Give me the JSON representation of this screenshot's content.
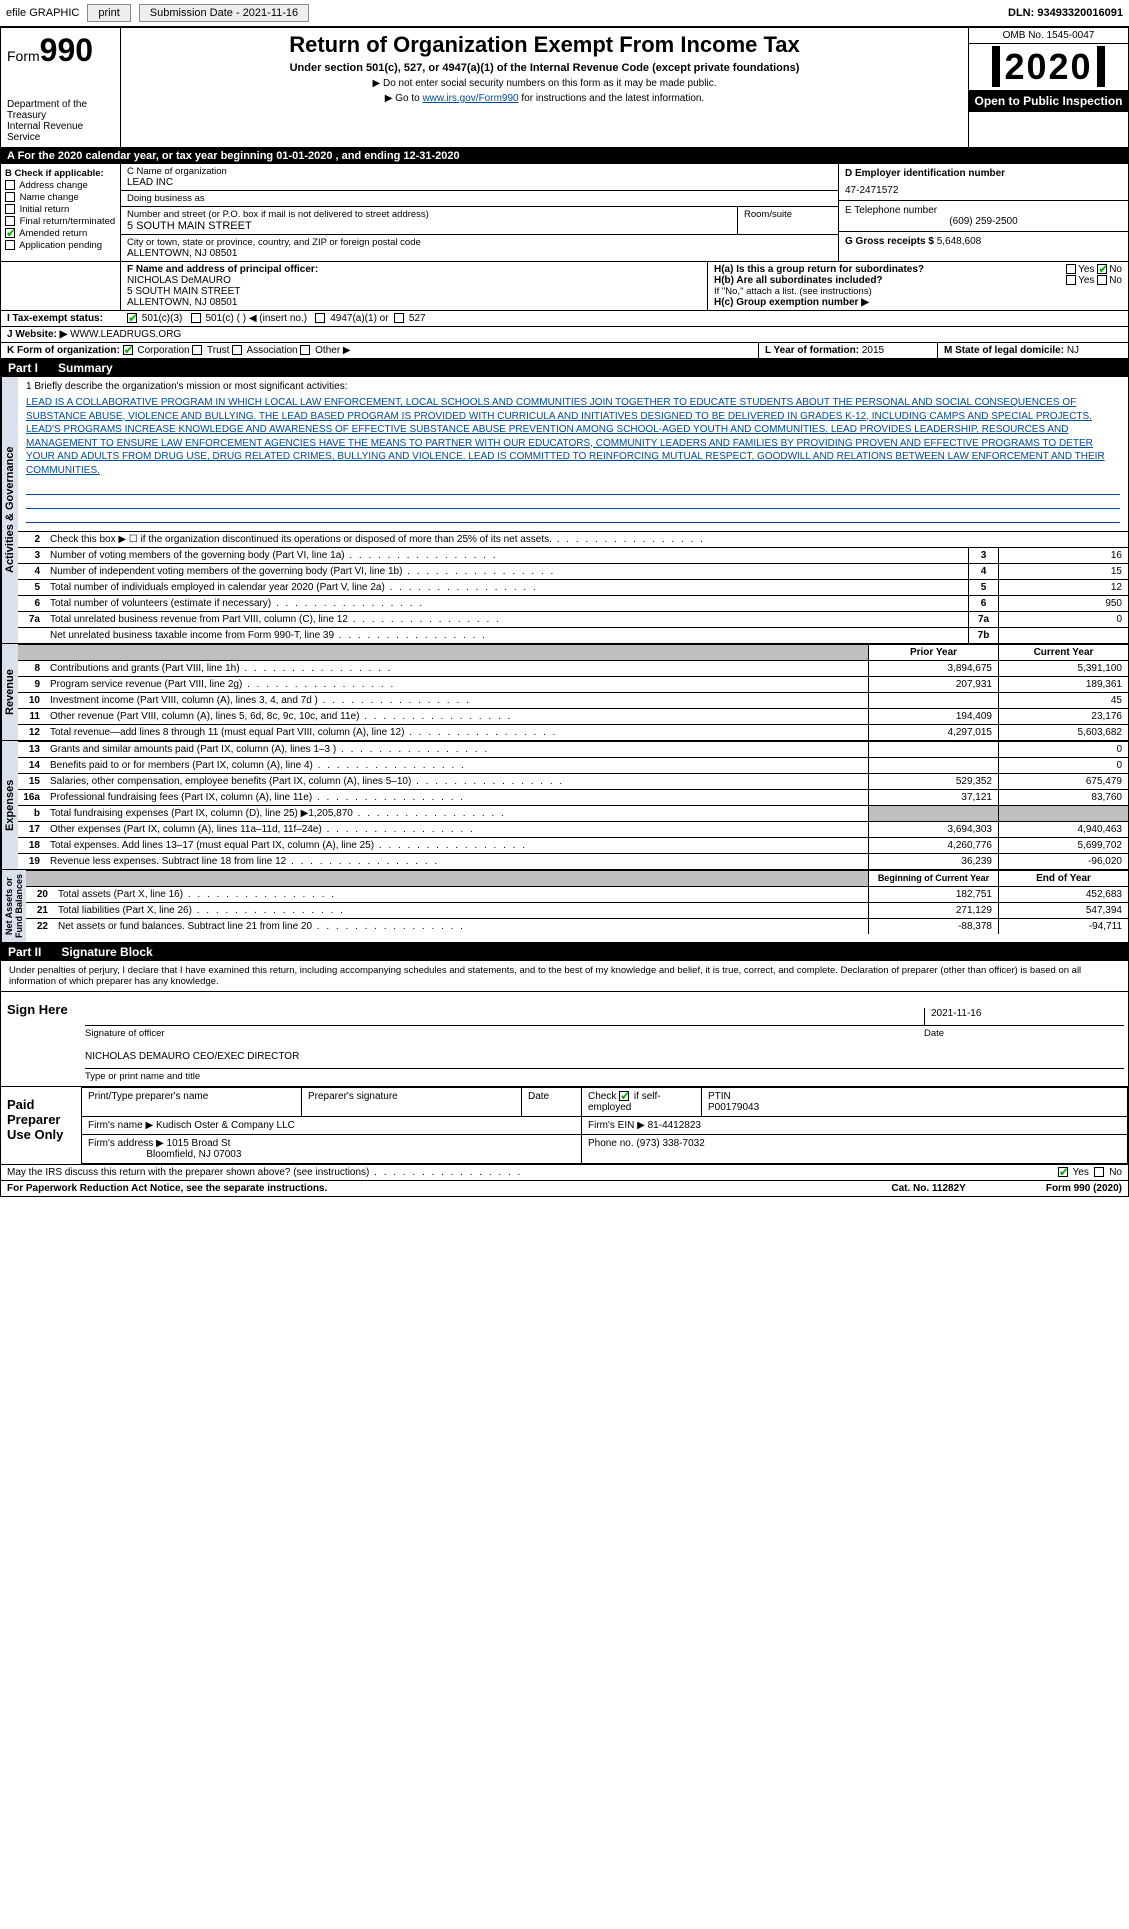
{
  "topbar": {
    "efile": "efile GRAPHIC",
    "print": "print",
    "subdate_label": "Submission Date - 2021-11-16",
    "dln": "DLN: 93493320016091"
  },
  "header": {
    "form_prefix": "Form",
    "form_num": "990",
    "dept": "Department of the Treasury\nInternal Revenue Service",
    "title": "Return of Organization Exempt From Income Tax",
    "sub": "Under section 501(c), 527, or 4947(a)(1) of the Internal Revenue Code (except private foundations)",
    "note1": "▶ Do not enter social security numbers on this form as it may be made public.",
    "note2_pre": "▶ Go to ",
    "note2_link": "www.irs.gov/Form990",
    "note2_post": " for instructions and the latest information.",
    "omb": "OMB No. 1545-0047",
    "year": "2020",
    "open": "Open to Public Inspection"
  },
  "period": "A   For the 2020 calendar year, or tax year beginning 01-01-2020    , and ending 12-31-2020",
  "box_b": {
    "label": "B Check if applicable:",
    "items": [
      "Address change",
      "Name change",
      "Initial return",
      "Final return/terminated",
      "Amended return",
      "Application pending"
    ],
    "checked": [
      false,
      false,
      false,
      false,
      true,
      false
    ]
  },
  "box_c": {
    "name_label": "C Name of organization",
    "name": "LEAD INC",
    "dba_label": "Doing business as",
    "dba": "",
    "street_label": "Number and street (or P.O. box if mail is not delivered to street address)",
    "street": "5 SOUTH MAIN STREET",
    "room_label": "Room/suite",
    "city_label": "City or town, state or province, country, and ZIP or foreign postal code",
    "city": "ALLENTOWN, NJ  08501"
  },
  "box_d": {
    "label": "D Employer identification number",
    "val": "47-2471572"
  },
  "box_e": {
    "label": "E Telephone number",
    "val": "(609) 259-2500"
  },
  "box_g": {
    "label": "G Gross receipts $ ",
    "val": "5,648,608"
  },
  "box_f": {
    "label": "F  Name and address of principal officer:",
    "name": "NICHOLAS DeMAURO",
    "street": "5 SOUTH MAIN STREET",
    "city": "ALLENTOWN, NJ  08501"
  },
  "box_h": {
    "a": "H(a)  Is this a group return for subordinates?",
    "b": "H(b)  Are all subordinates included?",
    "note": "If \"No,\" attach a list. (see instructions)",
    "c": "H(c)  Group exemption number ▶"
  },
  "tax_status": {
    "label": "I   Tax-exempt status:",
    "s501c3": "501(c)(3)",
    "s501c": "501(c) (  ) ◀ (insert no.)",
    "s4947": "4947(a)(1) or",
    "s527": "527"
  },
  "website": {
    "label": "J   Website: ▶",
    "val": "WWW.LEADRUGS.ORG"
  },
  "box_k": {
    "label": "K Form of organization:",
    "corp": "Corporation",
    "trust": "Trust",
    "assoc": "Association",
    "other": "Other ▶"
  },
  "box_l": {
    "label": "L Year of formation: ",
    "val": "2015"
  },
  "box_m": {
    "label": "M State of legal domicile: ",
    "val": "NJ"
  },
  "part1": {
    "title": "Part I",
    "sub": "Summary"
  },
  "mission": {
    "q": "1  Briefly describe the organization's mission or most significant activities:",
    "text": "LEAD IS A COLLABORATIVE PROGRAM IN WHICH LOCAL LAW ENFORCEMENT, LOCAL SCHOOLS AND COMMUNITIES JOIN TOGETHER TO EDUCATE STUDENTS ABOUT THE PERSONAL AND SOCIAL CONSEQUENCES OF SUBSTANCE ABUSE, VIOLENCE AND BULLYING. THE LEAD BASED PROGRAM IS PROVIDED WITH CURRICULA AND INITIATIVES DESIGNED TO BE DELIVERED IN GRADES K-12, INCLUDING CAMPS AND SPECIAL PROJECTS. LEAD'S PROGRAMS INCREASE KNOWLEDGE AND AWARENESS OF EFFECTIVE SUBSTANCE ABUSE PREVENTION AMONG SCHOOL-AGED YOUTH AND COMMUNITIES. LEAD PROVIDES LEADERSHIP, RESOURCES AND MANAGEMENT TO ENSURE LAW ENFORCEMENT AGENCIES HAVE THE MEANS TO PARTNER WITH OUR EDUCATORS, COMMUNITY LEADERS AND FAMILIES BY PROVIDING PROVEN AND EFFECTIVE PROGRAMS TO DETER YOUR AND ADULTS FROM DRUG USE, DRUG RELATED CRIMES, BULLYING AND VIOLENCE. LEAD IS COMMITTED TO REINFORCING MUTUAL RESPECT, GOODWILL AND RELATIONS BETWEEN LAW ENFORCEMENT AND THEIR COMMUNITIES."
  },
  "gov_lines": [
    {
      "n": "2",
      "d": "Check this box ▶ ☐ if the organization discontinued its operations or disposed of more than 25% of its net assets."
    },
    {
      "n": "3",
      "d": "Number of voting members of the governing body (Part VI, line 1a)",
      "box": "3",
      "v": "16"
    },
    {
      "n": "4",
      "d": "Number of independent voting members of the governing body (Part VI, line 1b)",
      "box": "4",
      "v": "15"
    },
    {
      "n": "5",
      "d": "Total number of individuals employed in calendar year 2020 (Part V, line 2a)",
      "box": "5",
      "v": "12"
    },
    {
      "n": "6",
      "d": "Total number of volunteers (estimate if necessary)",
      "box": "6",
      "v": "950"
    },
    {
      "n": "7a",
      "d": "Total unrelated business revenue from Part VIII, column (C), line 12",
      "box": "7a",
      "v": "0"
    },
    {
      "n": "",
      "d": "Net unrelated business taxable income from Form 990-T, line 39",
      "box": "7b",
      "v": ""
    }
  ],
  "rev_header": {
    "prior": "Prior Year",
    "current": "Current Year"
  },
  "rev_lines": [
    {
      "n": "8",
      "d": "Contributions and grants (Part VIII, line 1h)",
      "p": "3,894,675",
      "c": "5,391,100"
    },
    {
      "n": "9",
      "d": "Program service revenue (Part VIII, line 2g)",
      "p": "207,931",
      "c": "189,361"
    },
    {
      "n": "10",
      "d": "Investment income (Part VIII, column (A), lines 3, 4, and 7d )",
      "p": "",
      "c": "45"
    },
    {
      "n": "11",
      "d": "Other revenue (Part VIII, column (A), lines 5, 6d, 8c, 9c, 10c, and 11e)",
      "p": "194,409",
      "c": "23,176"
    },
    {
      "n": "12",
      "d": "Total revenue—add lines 8 through 11 (must equal Part VIII, column (A), line 12)",
      "p": "4,297,015",
      "c": "5,603,682"
    }
  ],
  "exp_lines": [
    {
      "n": "13",
      "d": "Grants and similar amounts paid (Part IX, column (A), lines 1–3 )",
      "p": "",
      "c": "0"
    },
    {
      "n": "14",
      "d": "Benefits paid to or for members (Part IX, column (A), line 4)",
      "p": "",
      "c": "0"
    },
    {
      "n": "15",
      "d": "Salaries, other compensation, employee benefits (Part IX, column (A), lines 5–10)",
      "p": "529,352",
      "c": "675,479"
    },
    {
      "n": "16a",
      "d": "Professional fundraising fees (Part IX, column (A), line 11e)",
      "p": "37,121",
      "c": "83,760"
    },
    {
      "n": "b",
      "d": "Total fundraising expenses (Part IX, column (D), line 25) ▶1,205,870",
      "p": "gray",
      "c": "gray"
    },
    {
      "n": "17",
      "d": "Other expenses (Part IX, column (A), lines 11a–11d, 11f–24e)",
      "p": "3,694,303",
      "c": "4,940,463"
    },
    {
      "n": "18",
      "d": "Total expenses. Add lines 13–17 (must equal Part IX, column (A), line 25)",
      "p": "4,260,776",
      "c": "5,699,702"
    },
    {
      "n": "19",
      "d": "Revenue less expenses. Subtract line 18 from line 12",
      "p": "36,239",
      "c": "-96,020"
    }
  ],
  "na_header": {
    "prior": "Beginning of Current Year",
    "current": "End of Year"
  },
  "na_lines": [
    {
      "n": "20",
      "d": "Total assets (Part X, line 16)",
      "p": "182,751",
      "c": "452,683"
    },
    {
      "n": "21",
      "d": "Total liabilities (Part X, line 26)",
      "p": "271,129",
      "c": "547,394"
    },
    {
      "n": "22",
      "d": "Net assets or fund balances. Subtract line 21 from line 20",
      "p": "-88,378",
      "c": "-94,711"
    }
  ],
  "vert": {
    "gov": "Activities & Governance",
    "rev": "Revenue",
    "exp": "Expenses",
    "na": "Net Assets or\nFund Balances"
  },
  "part2": {
    "title": "Part II",
    "sub": "Signature Block"
  },
  "penalties": "Under penalties of perjury, I declare that I have examined this return, including accompanying schedules and statements, and to the best of my knowledge and belief, it is true, correct, and complete. Declaration of preparer (other than officer) is based on all information of which preparer has any knowledge.",
  "sign": {
    "label": "Sign Here",
    "sig_of_officer": "Signature of officer",
    "date_label": "Date",
    "date": "2021-11-16",
    "name_title": "NICHOLAS DEMAURO  CEO/EXEC DIRECTOR",
    "type_label": "Type or print name and title"
  },
  "paid": {
    "label": "Paid Preparer Use Only",
    "h1": "Print/Type preparer's name",
    "h2": "Preparer's signature",
    "h3": "Date",
    "h4_check": "Check",
    "h4_if": "if self-employed",
    "h5": "PTIN",
    "ptin": "P00179043",
    "firm_name_l": "Firm's name    ▶",
    "firm_name": "Kudisch Oster & Company LLC",
    "firm_ein_l": "Firm's EIN ▶",
    "firm_ein": "81-4412823",
    "firm_addr_l": "Firm's address ▶",
    "firm_addr": "1015 Broad St",
    "firm_city": "Bloomfield, NJ  07003",
    "phone_l": "Phone no.",
    "phone": "(973) 338-7032"
  },
  "discuss": {
    "q": "May the IRS discuss this return with the preparer shown above? (see instructions)",
    "yes": "Yes",
    "no": "No"
  },
  "footer": {
    "left": "For Paperwork Reduction Act Notice, see the separate instructions.",
    "mid": "Cat. No. 11282Y",
    "right": "Form 990 (2020)"
  }
}
